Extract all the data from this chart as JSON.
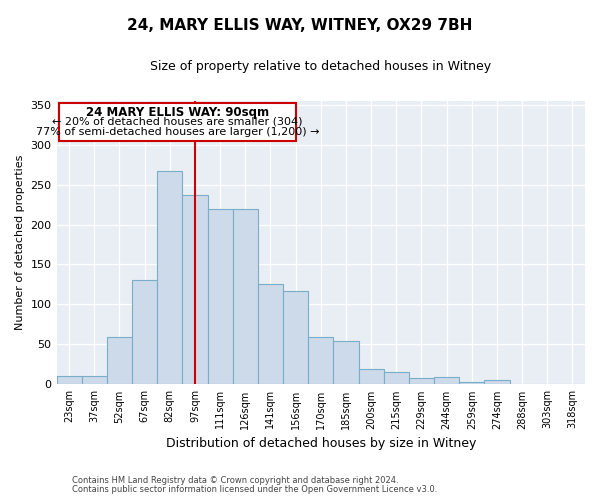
{
  "title": "24, MARY ELLIS WAY, WITNEY, OX29 7BH",
  "subtitle": "Size of property relative to detached houses in Witney",
  "xlabel": "Distribution of detached houses by size in Witney",
  "ylabel": "Number of detached properties",
  "footnote1": "Contains HM Land Registry data © Crown copyright and database right 2024.",
  "footnote2": "Contains public sector information licensed under the Open Government Licence v3.0.",
  "bar_labels": [
    "23sqm",
    "37sqm",
    "52sqm",
    "67sqm",
    "82sqm",
    "97sqm",
    "111sqm",
    "126sqm",
    "141sqm",
    "156sqm",
    "170sqm",
    "185sqm",
    "200sqm",
    "215sqm",
    "229sqm",
    "244sqm",
    "259sqm",
    "274sqm",
    "288sqm",
    "303sqm",
    "318sqm"
  ],
  "bar_values": [
    10,
    10,
    59,
    130,
    267,
    237,
    219,
    219,
    125,
    117,
    59,
    54,
    19,
    15,
    8,
    9,
    3,
    5,
    1,
    0,
    1
  ],
  "bar_color": "#ccdaea",
  "bar_edgecolor": "#7aadc8",
  "property_line_x": 5.0,
  "property_label": "24 MARY ELLIS WAY: 90sqm",
  "annotation_line1": "← 20% of detached houses are smaller (304)",
  "annotation_line2": "77% of semi-detached houses are larger (1,200) →",
  "box_color": "#cc0000",
  "ylim": [
    0,
    355
  ],
  "yticks": [
    0,
    50,
    100,
    150,
    200,
    250,
    300,
    350
  ],
  "plot_bg_color": "#e8eef4",
  "fig_bg_color": "#ffffff",
  "grid_color": "#ffffff",
  "title_fontsize": 11,
  "subtitle_fontsize": 9,
  "ylabel_fontsize": 8,
  "xlabel_fontsize": 9
}
